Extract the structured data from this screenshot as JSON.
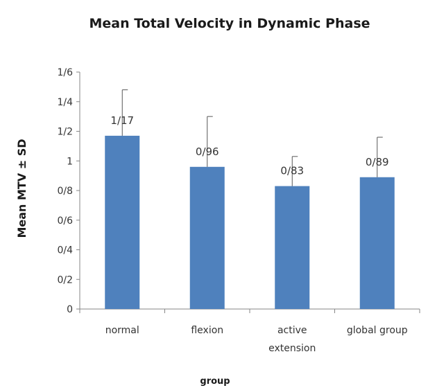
{
  "chart_data": {
    "type": "bar",
    "title": "Mean Total Velocity in Dynamic Phase",
    "xlabel": "group",
    "ylabel": "Mean MTV ± SD",
    "categories": [
      [
        "normal"
      ],
      [
        "flexion"
      ],
      [
        "active",
        "extension"
      ],
      [
        "global group"
      ]
    ],
    "values": [
      1.17,
      0.96,
      0.83,
      0.89
    ],
    "error_plus": [
      0.31,
      0.34,
      0.2,
      0.27
    ],
    "data_labels": [
      "1/17",
      "0/96",
      "0/83",
      "0/89"
    ],
    "ylim": [
      0,
      1.6
    ],
    "yticks": [
      0,
      0.2,
      0.4,
      0.6,
      0.8,
      1.0,
      1.2,
      1.4,
      1.6
    ],
    "ytick_labels": [
      "0",
      "0/2",
      "0/4",
      "0/6",
      "0/8",
      "1",
      "1/2",
      "1/4",
      "1/6"
    ],
    "grid": false,
    "legend": "none",
    "colors": {
      "bar": "#4f81bd",
      "axis": "#868686",
      "text": "#333333"
    }
  }
}
